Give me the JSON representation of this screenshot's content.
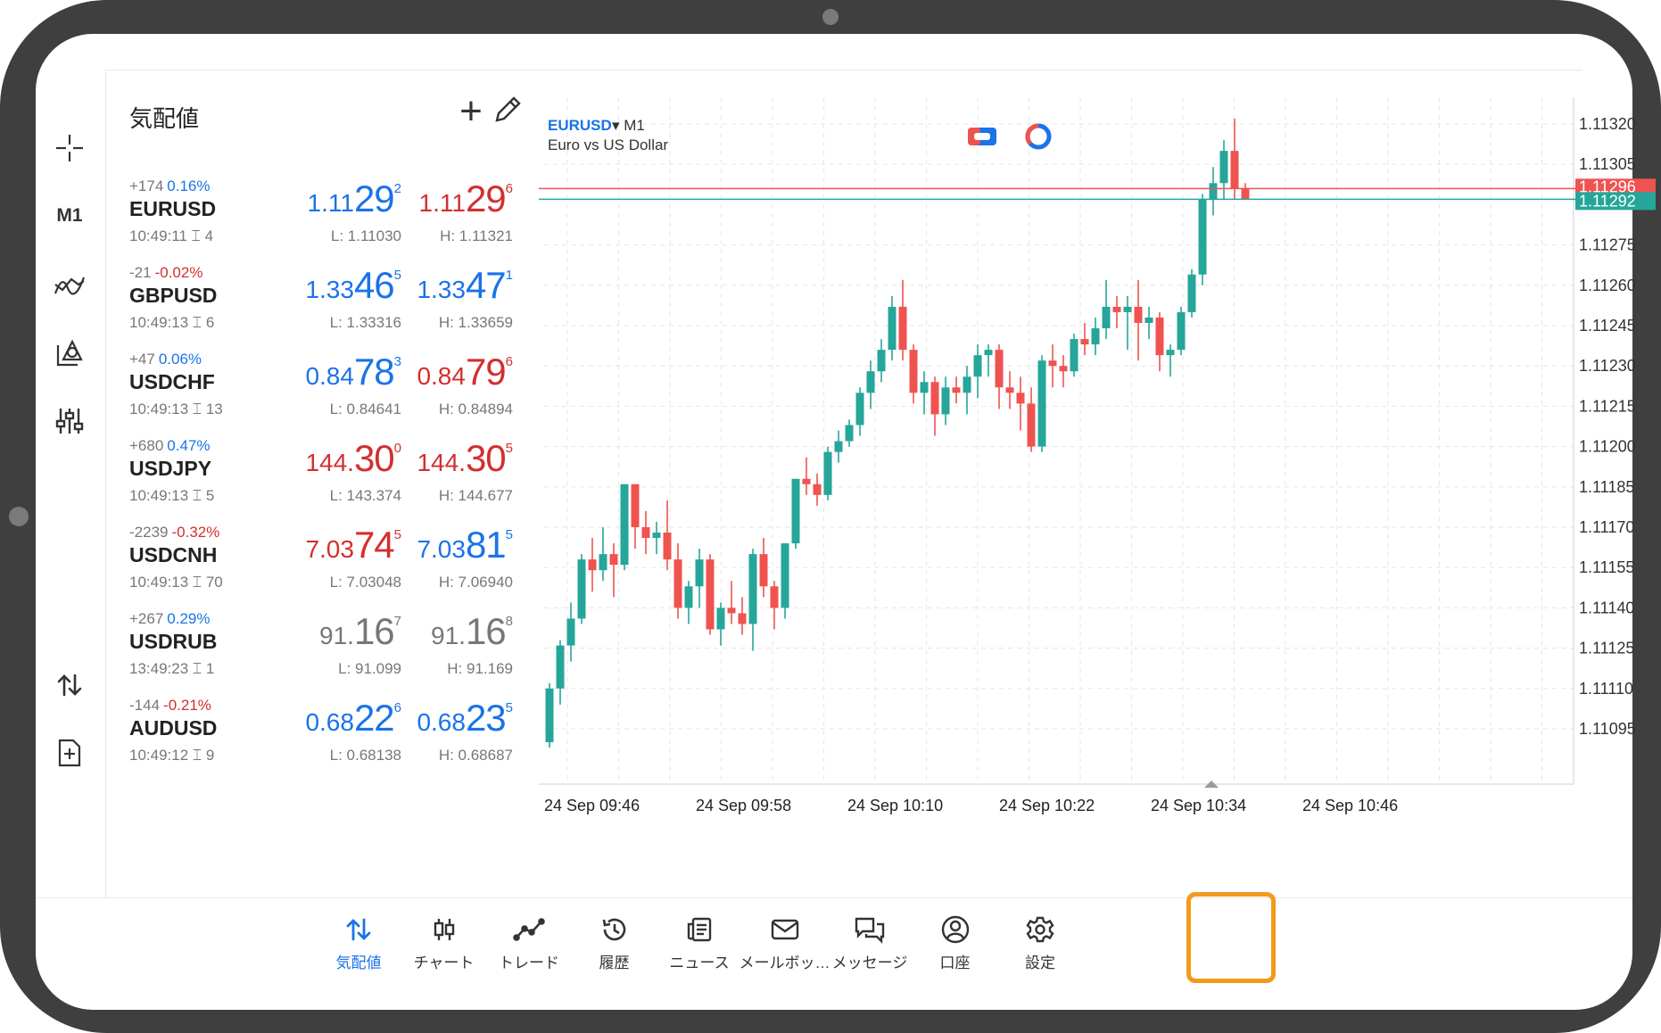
{
  "quotes_panel": {
    "title": "気配値",
    "rows": [
      {
        "change": "+174",
        "pct": "0.16%",
        "pct_sign": "pos",
        "symbol": "EURUSD",
        "time": "10:49:11",
        "spread": "4",
        "bid": {
          "a": "1.11",
          "b": "29",
          "c": "2",
          "color": "blue"
        },
        "ask": {
          "a": "1.11",
          "b": "29",
          "c": "6",
          "color": "red"
        },
        "low": "L: 1.11030",
        "high": "H: 1.11321"
      },
      {
        "change": "-21",
        "pct": "-0.02%",
        "pct_sign": "neg",
        "symbol": "GBPUSD",
        "time": "10:49:13",
        "spread": "6",
        "bid": {
          "a": "1.33",
          "b": "46",
          "c": "5",
          "color": "blue"
        },
        "ask": {
          "a": "1.33",
          "b": "47",
          "c": "1",
          "color": "blue"
        },
        "low": "L: 1.33316",
        "high": "H: 1.33659"
      },
      {
        "change": "+47",
        "pct": "0.06%",
        "pct_sign": "pos",
        "symbol": "USDCHF",
        "time": "10:49:13",
        "spread": "13",
        "bid": {
          "a": "0.84",
          "b": "78",
          "c": "3",
          "color": "blue"
        },
        "ask": {
          "a": "0.84",
          "b": "79",
          "c": "6",
          "color": "red"
        },
        "low": "L: 0.84641",
        "high": "H: 0.84894"
      },
      {
        "change": "+680",
        "pct": "0.47%",
        "pct_sign": "pos",
        "symbol": "USDJPY",
        "time": "10:49:13",
        "spread": "5",
        "bid": {
          "a": "144.",
          "b": "30",
          "c": "0",
          "color": "red"
        },
        "ask": {
          "a": "144.",
          "b": "30",
          "c": "5",
          "color": "red"
        },
        "low": "L: 143.374",
        "high": "H: 144.677"
      },
      {
        "change": "-2239",
        "pct": "-0.32%",
        "pct_sign": "neg",
        "symbol": "USDCNH",
        "time": "10:49:13",
        "spread": "70",
        "bid": {
          "a": "7.03",
          "b": "74",
          "c": "5",
          "color": "red"
        },
        "ask": {
          "a": "7.03",
          "b": "81",
          "c": "5",
          "color": "blue"
        },
        "low": "L: 7.03048",
        "high": "H: 7.06940"
      },
      {
        "change": "+267",
        "pct": "0.29%",
        "pct_sign": "pos",
        "symbol": "USDRUB",
        "time": "13:49:23",
        "spread": "1",
        "bid": {
          "a": "91.",
          "b": "16",
          "c": "7",
          "color": "grey"
        },
        "ask": {
          "a": "91.",
          "b": "16",
          "c": "8",
          "color": "grey"
        },
        "low": "L: 91.099",
        "high": "H: 91.169"
      },
      {
        "change": "-144",
        "pct": "-0.21%",
        "pct_sign": "neg",
        "symbol": "AUDUSD",
        "time": "10:49:12",
        "spread": "9",
        "bid": {
          "a": "0.68",
          "b": "22",
          "c": "6",
          "color": "blue"
        },
        "ask": {
          "a": "0.68",
          "b": "23",
          "c": "5",
          "color": "blue"
        },
        "low": "L: 0.68138",
        "high": "H: 0.68687"
      }
    ]
  },
  "toolbar": {
    "timeframe": "M1",
    "icons": [
      "crosshair-icon",
      "indicators-icon",
      "objects-icon",
      "chart-settings-icon",
      "one-click-trade-icon",
      "new-order-icon"
    ]
  },
  "chart": {
    "symbol": "EURUSD",
    "timeframe": "M1",
    "description": "Euro vs US Dollar",
    "price_labels": [
      "1.11320",
      "1.11305",
      "1.11275",
      "1.11260",
      "1.11245",
      "1.11230",
      "1.11215",
      "1.11200",
      "1.11185",
      "1.11170",
      "1.11155",
      "1.11140",
      "1.11125",
      "1.11110",
      "1.11095"
    ],
    "ask_line_label": "1.11296",
    "bid_line_label": "1.11292",
    "time_labels": [
      "24 Sep 09:46",
      "24 Sep 09:58",
      "24 Sep 10:10",
      "24 Sep 10:22",
      "24 Sep 10:34",
      "24 Sep 10:46"
    ],
    "colors": {
      "up": "#26a69a",
      "down": "#ef5350",
      "ask_line": "#ef5350",
      "bid_line": "#26a69a"
    }
  },
  "chart_data": {
    "type": "candlestick",
    "symbol": "EURUSD",
    "timeframe": "M1",
    "y_range": [
      1.11085,
      1.1133
    ],
    "candles": [
      {
        "o": 1.1109,
        "h": 1.11112,
        "l": 1.11088,
        "c": 1.1111
      },
      {
        "o": 1.1111,
        "h": 1.11128,
        "l": 1.11104,
        "c": 1.11126
      },
      {
        "o": 1.11126,
        "h": 1.11142,
        "l": 1.1112,
        "c": 1.11136
      },
      {
        "o": 1.11136,
        "h": 1.1116,
        "l": 1.11134,
        "c": 1.11158
      },
      {
        "o": 1.11158,
        "h": 1.11166,
        "l": 1.11146,
        "c": 1.11154
      },
      {
        "o": 1.11154,
        "h": 1.1117,
        "l": 1.1115,
        "c": 1.1116
      },
      {
        "o": 1.1116,
        "h": 1.11164,
        "l": 1.11144,
        "c": 1.11156
      },
      {
        "o": 1.11156,
        "h": 1.11186,
        "l": 1.11154,
        "c": 1.11186
      },
      {
        "o": 1.11186,
        "h": 1.11186,
        "l": 1.11162,
        "c": 1.1117
      },
      {
        "o": 1.1117,
        "h": 1.11176,
        "l": 1.1116,
        "c": 1.11166
      },
      {
        "o": 1.11166,
        "h": 1.11172,
        "l": 1.1116,
        "c": 1.11168
      },
      {
        "o": 1.11168,
        "h": 1.1118,
        "l": 1.11154,
        "c": 1.11158
      },
      {
        "o": 1.11158,
        "h": 1.11164,
        "l": 1.11136,
        "c": 1.1114
      },
      {
        "o": 1.1114,
        "h": 1.1115,
        "l": 1.11134,
        "c": 1.11148
      },
      {
        "o": 1.11148,
        "h": 1.11162,
        "l": 1.1114,
        "c": 1.11158
      },
      {
        "o": 1.11158,
        "h": 1.1116,
        "l": 1.1113,
        "c": 1.11132
      },
      {
        "o": 1.11132,
        "h": 1.11142,
        "l": 1.11126,
        "c": 1.1114
      },
      {
        "o": 1.1114,
        "h": 1.1115,
        "l": 1.11134,
        "c": 1.11138
      },
      {
        "o": 1.11138,
        "h": 1.11144,
        "l": 1.1113,
        "c": 1.11134
      },
      {
        "o": 1.11134,
        "h": 1.11162,
        "l": 1.11124,
        "c": 1.1116
      },
      {
        "o": 1.1116,
        "h": 1.11166,
        "l": 1.11144,
        "c": 1.11148
      },
      {
        "o": 1.11148,
        "h": 1.1115,
        "l": 1.11132,
        "c": 1.1114
      },
      {
        "o": 1.1114,
        "h": 1.11164,
        "l": 1.11136,
        "c": 1.11164
      },
      {
        "o": 1.11164,
        "h": 1.11188,
        "l": 1.11162,
        "c": 1.11188
      },
      {
        "o": 1.11188,
        "h": 1.11196,
        "l": 1.11182,
        "c": 1.11186
      },
      {
        "o": 1.11186,
        "h": 1.1119,
        "l": 1.11178,
        "c": 1.11182
      },
      {
        "o": 1.11182,
        "h": 1.112,
        "l": 1.1118,
        "c": 1.11198
      },
      {
        "o": 1.11198,
        "h": 1.11206,
        "l": 1.11194,
        "c": 1.11202
      },
      {
        "o": 1.11202,
        "h": 1.1121,
        "l": 1.112,
        "c": 1.11208
      },
      {
        "o": 1.11208,
        "h": 1.11222,
        "l": 1.11204,
        "c": 1.1122
      },
      {
        "o": 1.1122,
        "h": 1.11232,
        "l": 1.11214,
        "c": 1.11228
      },
      {
        "o": 1.11228,
        "h": 1.1124,
        "l": 1.11224,
        "c": 1.11236
      },
      {
        "o": 1.11236,
        "h": 1.11256,
        "l": 1.11232,
        "c": 1.11252
      },
      {
        "o": 1.11252,
        "h": 1.11262,
        "l": 1.11232,
        "c": 1.11236
      },
      {
        "o": 1.11236,
        "h": 1.11238,
        "l": 1.11216,
        "c": 1.1122
      },
      {
        "o": 1.1122,
        "h": 1.11228,
        "l": 1.11212,
        "c": 1.11224
      },
      {
        "o": 1.11224,
        "h": 1.11226,
        "l": 1.11204,
        "c": 1.11212
      },
      {
        "o": 1.11212,
        "h": 1.11226,
        "l": 1.11208,
        "c": 1.11222
      },
      {
        "o": 1.11222,
        "h": 1.11226,
        "l": 1.11216,
        "c": 1.1122
      },
      {
        "o": 1.1122,
        "h": 1.1123,
        "l": 1.11212,
        "c": 1.11226
      },
      {
        "o": 1.11226,
        "h": 1.11238,
        "l": 1.11218,
        "c": 1.11234
      },
      {
        "o": 1.11234,
        "h": 1.11238,
        "l": 1.11226,
        "c": 1.11236
      },
      {
        "o": 1.11236,
        "h": 1.11238,
        "l": 1.11214,
        "c": 1.11222
      },
      {
        "o": 1.11222,
        "h": 1.11228,
        "l": 1.11214,
        "c": 1.1122
      },
      {
        "o": 1.1122,
        "h": 1.11226,
        "l": 1.11206,
        "c": 1.11216
      },
      {
        "o": 1.11216,
        "h": 1.11222,
        "l": 1.11198,
        "c": 1.112
      },
      {
        "o": 1.112,
        "h": 1.11234,
        "l": 1.11198,
        "c": 1.11232
      },
      {
        "o": 1.11232,
        "h": 1.11238,
        "l": 1.11222,
        "c": 1.1123
      },
      {
        "o": 1.1123,
        "h": 1.11234,
        "l": 1.11222,
        "c": 1.11228
      },
      {
        "o": 1.11228,
        "h": 1.11242,
        "l": 1.11226,
        "c": 1.1124
      },
      {
        "o": 1.1124,
        "h": 1.11246,
        "l": 1.11234,
        "c": 1.11238
      },
      {
        "o": 1.11238,
        "h": 1.11248,
        "l": 1.11234,
        "c": 1.11244
      },
      {
        "o": 1.11244,
        "h": 1.11262,
        "l": 1.1124,
        "c": 1.11252
      },
      {
        "o": 1.11252,
        "h": 1.11256,
        "l": 1.11244,
        "c": 1.1125
      },
      {
        "o": 1.1125,
        "h": 1.11256,
        "l": 1.11236,
        "c": 1.11252
      },
      {
        "o": 1.11252,
        "h": 1.11262,
        "l": 1.11232,
        "c": 1.11246
      },
      {
        "o": 1.11246,
        "h": 1.11252,
        "l": 1.1124,
        "c": 1.11248
      },
      {
        "o": 1.11248,
        "h": 1.1125,
        "l": 1.11228,
        "c": 1.11234
      },
      {
        "o": 1.11234,
        "h": 1.11238,
        "l": 1.11226,
        "c": 1.11236
      },
      {
        "o": 1.11236,
        "h": 1.11252,
        "l": 1.11234,
        "c": 1.1125
      },
      {
        "o": 1.1125,
        "h": 1.11266,
        "l": 1.11248,
        "c": 1.11264
      },
      {
        "o": 1.11264,
        "h": 1.11294,
        "l": 1.1126,
        "c": 1.11292
      },
      {
        "o": 1.11292,
        "h": 1.11304,
        "l": 1.11286,
        "c": 1.11298
      },
      {
        "o": 1.11298,
        "h": 1.11314,
        "l": 1.11292,
        "c": 1.1131
      },
      {
        "o": 1.1131,
        "h": 1.11322,
        "l": 1.11292,
        "c": 1.11296
      },
      {
        "o": 1.11296,
        "h": 1.11298,
        "l": 1.11292,
        "c": 1.11292
      }
    ]
  },
  "bottom_nav": {
    "items": [
      {
        "label": "気配値",
        "icon": "quotes-arrows-icon",
        "active": true
      },
      {
        "label": "チャート",
        "icon": "chart-candles-icon",
        "active": false
      },
      {
        "label": "トレード",
        "icon": "trade-line-icon",
        "active": false
      },
      {
        "label": "履歴",
        "icon": "history-icon",
        "active": false
      },
      {
        "label": "ニュース",
        "icon": "news-icon",
        "active": false
      },
      {
        "label": "メールボッ…",
        "icon": "mail-icon",
        "active": false
      },
      {
        "label": "メッセージ",
        "icon": "messages-icon",
        "active": false
      },
      {
        "label": "口座",
        "icon": "account-icon",
        "active": false
      },
      {
        "label": "設定",
        "icon": "settings-gear-icon",
        "active": false
      }
    ]
  }
}
